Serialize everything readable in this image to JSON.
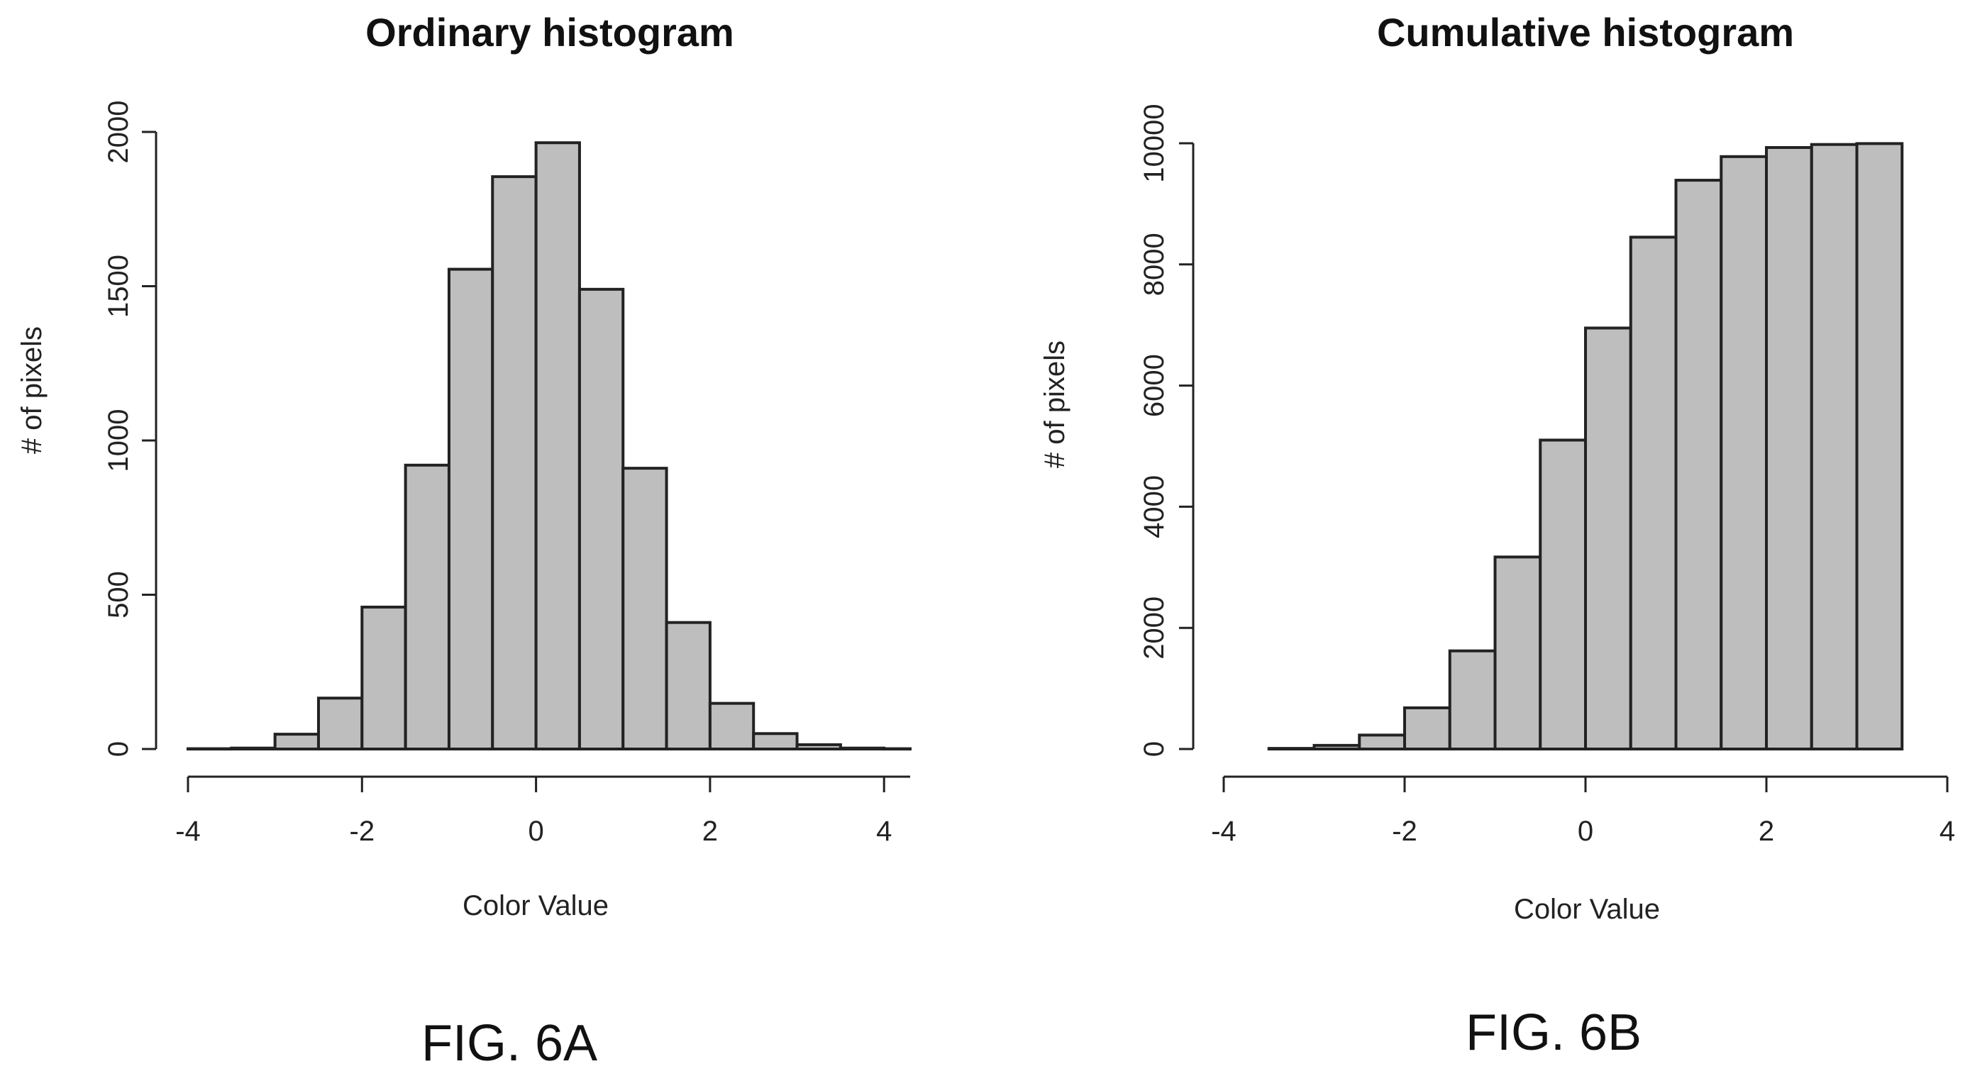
{
  "figures": [
    {
      "label": "FIG. 6A"
    },
    {
      "label": "FIG. 6B"
    }
  ],
  "chart_data": [
    {
      "type": "bar",
      "title": "Ordinary histogram",
      "xlabel": "Color Value",
      "ylabel": "# of pixels",
      "xlim": [
        -4,
        4.3
      ],
      "ylim": [
        0,
        2000
      ],
      "x_ticks": [
        "-4",
        "-2",
        "0",
        "2",
        "4"
      ],
      "y_ticks": [
        "0",
        "500",
        "1000",
        "1500",
        "2000"
      ],
      "bins": [
        {
          "x0": -4.0,
          "x1": -3.5,
          "value": 1
        },
        {
          "x0": -3.5,
          "x1": -3.0,
          "value": 3
        },
        {
          "x0": -3.0,
          "x1": -2.5,
          "value": 48
        },
        {
          "x0": -2.5,
          "x1": -2.0,
          "value": 165
        },
        {
          "x0": -2.0,
          "x1": -1.5,
          "value": 460
        },
        {
          "x0": -1.5,
          "x1": -1.0,
          "value": 920
        },
        {
          "x0": -1.0,
          "x1": -0.5,
          "value": 1555
        },
        {
          "x0": -0.5,
          "x1": 0.0,
          "value": 1855
        },
        {
          "x0": 0.0,
          "x1": 0.5,
          "value": 1965
        },
        {
          "x0": 0.5,
          "x1": 1.0,
          "value": 1490
        },
        {
          "x0": 1.0,
          "x1": 1.5,
          "value": 910
        },
        {
          "x0": 1.5,
          "x1": 2.0,
          "value": 410
        },
        {
          "x0": 2.0,
          "x1": 2.5,
          "value": 148
        },
        {
          "x0": 2.5,
          "x1": 3.0,
          "value": 50
        },
        {
          "x0": 3.0,
          "x1": 3.5,
          "value": 14
        },
        {
          "x0": 3.5,
          "x1": 4.0,
          "value": 3
        },
        {
          "x0": 4.0,
          "x1": 4.3,
          "value": 1
        }
      ],
      "grid": false,
      "bar_color": "#bebebe"
    },
    {
      "type": "bar",
      "title": "Cumulative histogram",
      "xlabel": "Color Value",
      "ylabel": "# of pixels",
      "xlim": [
        -4,
        4
      ],
      "ylim": [
        0,
        10000
      ],
      "x_ticks": [
        "-4",
        "-2",
        "0",
        "2",
        "4"
      ],
      "y_ticks": [
        "0",
        "2000",
        "4000",
        "6000",
        "8000",
        "10000"
      ],
      "bins": [
        {
          "x0": -3.5,
          "x1": -3.0,
          "value": 10
        },
        {
          "x0": -3.0,
          "x1": -2.5,
          "value": 60
        },
        {
          "x0": -2.5,
          "x1": -2.0,
          "value": 230
        },
        {
          "x0": -2.0,
          "x1": -1.5,
          "value": 680
        },
        {
          "x0": -1.5,
          "x1": -1.0,
          "value": 1620
        },
        {
          "x0": -1.0,
          "x1": -0.5,
          "value": 3170
        },
        {
          "x0": -0.5,
          "x1": 0.0,
          "value": 5100
        },
        {
          "x0": 0.0,
          "x1": 0.5,
          "value": 6950
        },
        {
          "x0": 0.5,
          "x1": 1.0,
          "value": 8450
        },
        {
          "x0": 1.0,
          "x1": 1.5,
          "value": 9390
        },
        {
          "x0": 1.5,
          "x1": 2.0,
          "value": 9780
        },
        {
          "x0": 2.0,
          "x1": 2.5,
          "value": 9930
        },
        {
          "x0": 2.5,
          "x1": 3.0,
          "value": 9980
        },
        {
          "x0": 3.0,
          "x1": 3.5,
          "value": 9995
        }
      ],
      "grid": false,
      "bar_color": "#bebebe"
    }
  ]
}
